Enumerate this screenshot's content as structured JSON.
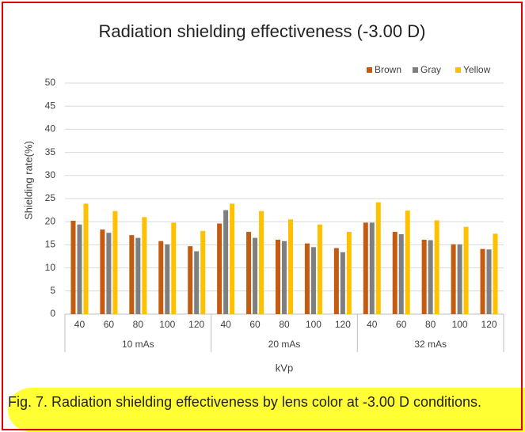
{
  "chart_data": {
    "type": "bar",
    "title": "Radiation shielding effectiveness (-3.00 D)",
    "categories": [
      "40",
      "60",
      "80",
      "100",
      "120",
      "40",
      "60",
      "80",
      "100",
      "120",
      "40",
      "60",
      "80",
      "100",
      "120"
    ],
    "groups": [
      "10 mAs",
      "20 mAs",
      "32 mAs"
    ],
    "x_label": "kVp",
    "y_label": "Shielding rate(%)",
    "series": [
      {
        "name": "Brown",
        "color": "#c55a11",
        "values": [
          20.2,
          18.3,
          17.1,
          15.8,
          14.7,
          19.6,
          17.8,
          16.1,
          15.3,
          14.3,
          19.8,
          17.8,
          16.1,
          15.1,
          14.1
        ]
      },
      {
        "name": "Gray",
        "color": "#7f7f7f",
        "values": [
          19.4,
          17.6,
          16.5,
          15.1,
          13.6,
          22.5,
          16.5,
          15.8,
          14.5,
          13.4,
          19.8,
          17.3,
          16.0,
          15.1,
          14.0
        ]
      },
      {
        "name": "Yellow",
        "color": "#ffc000",
        "values": [
          23.9,
          22.3,
          21.0,
          19.8,
          18.0,
          23.9,
          22.3,
          20.5,
          19.4,
          17.8,
          24.2,
          22.4,
          20.3,
          18.9,
          17.4
        ]
      }
    ],
    "ylim": [
      0,
      50
    ],
    "yticks": [
      0,
      5,
      10,
      15,
      20,
      25,
      30,
      35,
      40,
      45,
      50
    ],
    "grid": true,
    "legend": "top-right"
  },
  "caption": "Fig. 7. Radiation shielding effectiveness by lens color at -3.00 D conditions."
}
